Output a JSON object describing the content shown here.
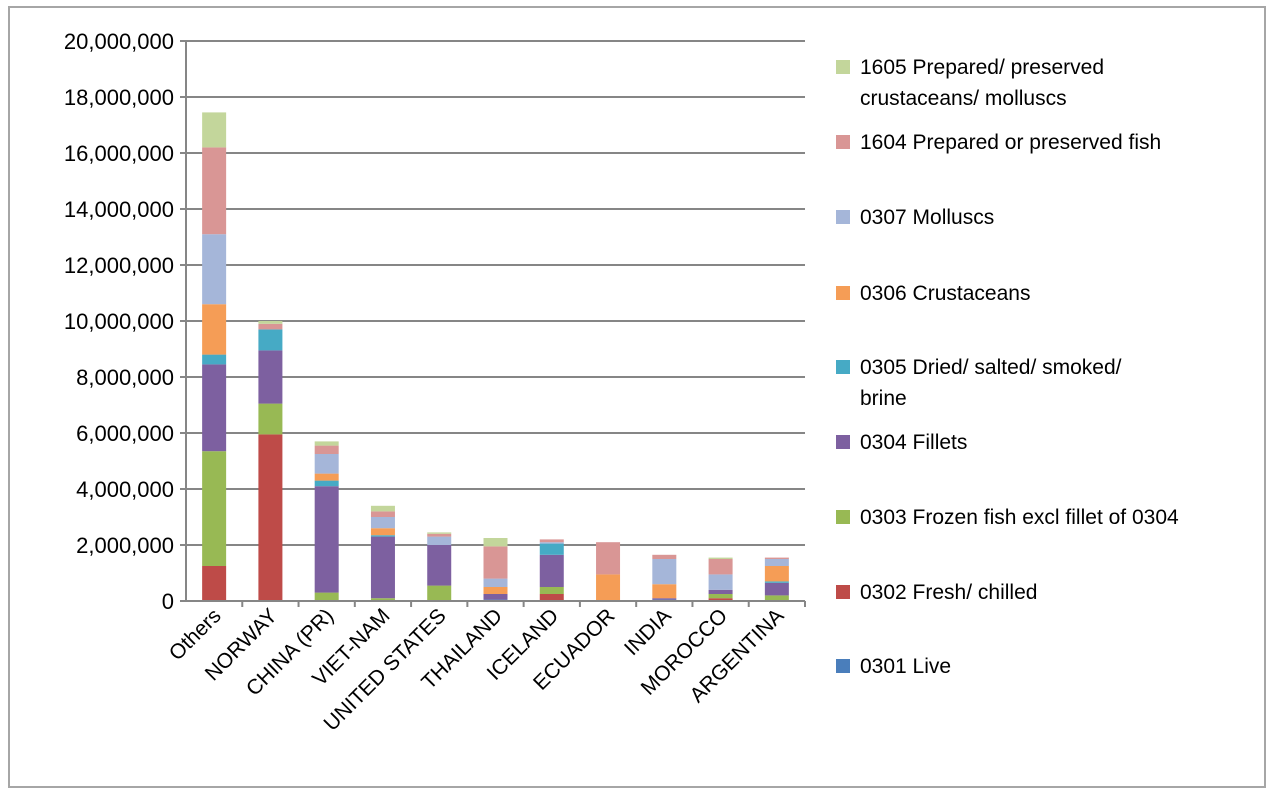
{
  "chart_data": {
    "type": "bar",
    "stacked": true,
    "title": "",
    "xlabel": "",
    "ylabel": "",
    "ylim": [
      0,
      20000000
    ],
    "yticks": [
      "0",
      "2,000,000",
      "4,000,000",
      "6,000,000",
      "8,000,000",
      "10,000,000",
      "12,000,000",
      "14,000,000",
      "16,000,000",
      "18,000,000",
      "20,000,000"
    ],
    "ytick_values": [
      0,
      2000000,
      4000000,
      6000000,
      8000000,
      10000000,
      12000000,
      14000000,
      16000000,
      18000000,
      20000000
    ],
    "grid": true,
    "legend_position": "right",
    "categories": [
      "Others",
      "NORWAY",
      "CHINA (PR)",
      "VIET-NAM",
      "UNITED STATES",
      "THAILAND",
      "ICELAND",
      "ECUADOR",
      "INDIA",
      "MOROCCO",
      "ARGENTINA"
    ],
    "series": [
      {
        "name": "0301 Live",
        "color": "#4a7ebb",
        "values": [
          0,
          0,
          0,
          0,
          0,
          50000,
          0,
          0,
          50000,
          0,
          0
        ]
      },
      {
        "name": "0302 Fresh/ chilled",
        "color": "#be4b48",
        "values": [
          1250000,
          5950000,
          0,
          0,
          0,
          0,
          250000,
          0,
          0,
          100000,
          0
        ]
      },
      {
        "name": "0303 Frozen fish excl fillet of 0304",
        "color": "#98b954",
        "values": [
          4100000,
          1100000,
          300000,
          100000,
          550000,
          0,
          250000,
          0,
          0,
          150000,
          200000
        ]
      },
      {
        "name": "0304 Fillets",
        "color": "#7d60a0",
        "values": [
          3100000,
          1900000,
          3800000,
          2200000,
          1450000,
          200000,
          1150000,
          0,
          50000,
          150000,
          450000
        ]
      },
      {
        "name": "0305 Dried/ salted/ smoked/ brine",
        "color": "#46aac5",
        "values": [
          350000,
          750000,
          200000,
          50000,
          0,
          0,
          400000,
          0,
          0,
          0,
          50000
        ]
      },
      {
        "name": "0306 Crustaceans",
        "color": "#f59d56",
        "values": [
          1800000,
          0,
          250000,
          250000,
          0,
          250000,
          0,
          950000,
          500000,
          0,
          550000
        ]
      },
      {
        "name": "0307 Molluscs",
        "color": "#a5b6d9",
        "values": [
          2500000,
          0,
          700000,
          400000,
          300000,
          300000,
          50000,
          0,
          900000,
          550000,
          250000
        ]
      },
      {
        "name": "1604 Prepared or preserved fish",
        "color": "#d99695",
        "values": [
          3100000,
          200000,
          300000,
          200000,
          100000,
          1150000,
          100000,
          1150000,
          150000,
          550000,
          50000
        ]
      },
      {
        "name": "1605 Prepared/ preserved crustaceans/ molluscs",
        "color": "#c3d69b",
        "values": [
          1250000,
          100000,
          150000,
          200000,
          50000,
          300000,
          0,
          0,
          0,
          50000,
          0
        ]
      }
    ]
  }
}
